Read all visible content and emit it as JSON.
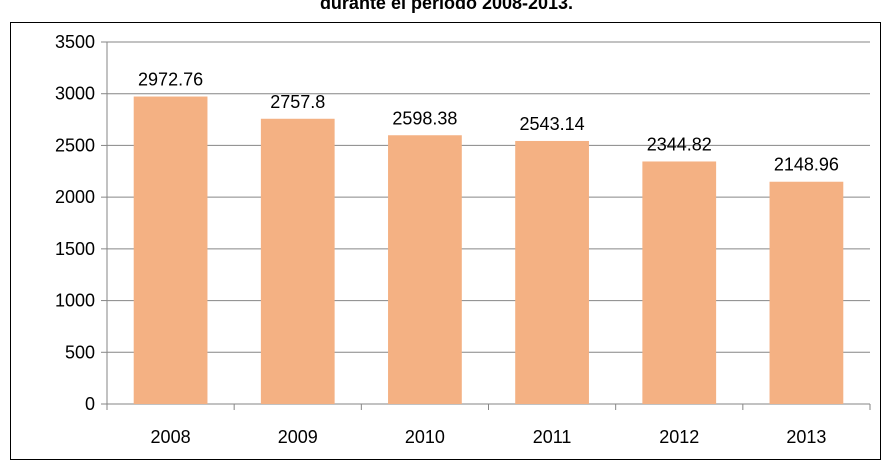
{
  "chart_data": {
    "type": "bar",
    "title": "durante el periodo 2008-2013.",
    "categories": [
      "2008",
      "2009",
      "2010",
      "2011",
      "2012",
      "2013"
    ],
    "values": [
      2972.76,
      2757.8,
      2598.38,
      2543.14,
      2344.82,
      2148.96
    ],
    "data_labels": [
      "2972.76",
      "2757.8",
      "2598.38",
      "2543.14",
      "2344.82",
      "2148.96"
    ],
    "ylim": [
      0,
      3500
    ],
    "yticks": [
      0,
      500,
      1000,
      1500,
      2000,
      2500,
      3000,
      3500
    ],
    "xlabel": "",
    "ylabel": "",
    "grid": true,
    "legend": "none",
    "bar_color": "#F4B183",
    "grid_color": "#868686"
  }
}
